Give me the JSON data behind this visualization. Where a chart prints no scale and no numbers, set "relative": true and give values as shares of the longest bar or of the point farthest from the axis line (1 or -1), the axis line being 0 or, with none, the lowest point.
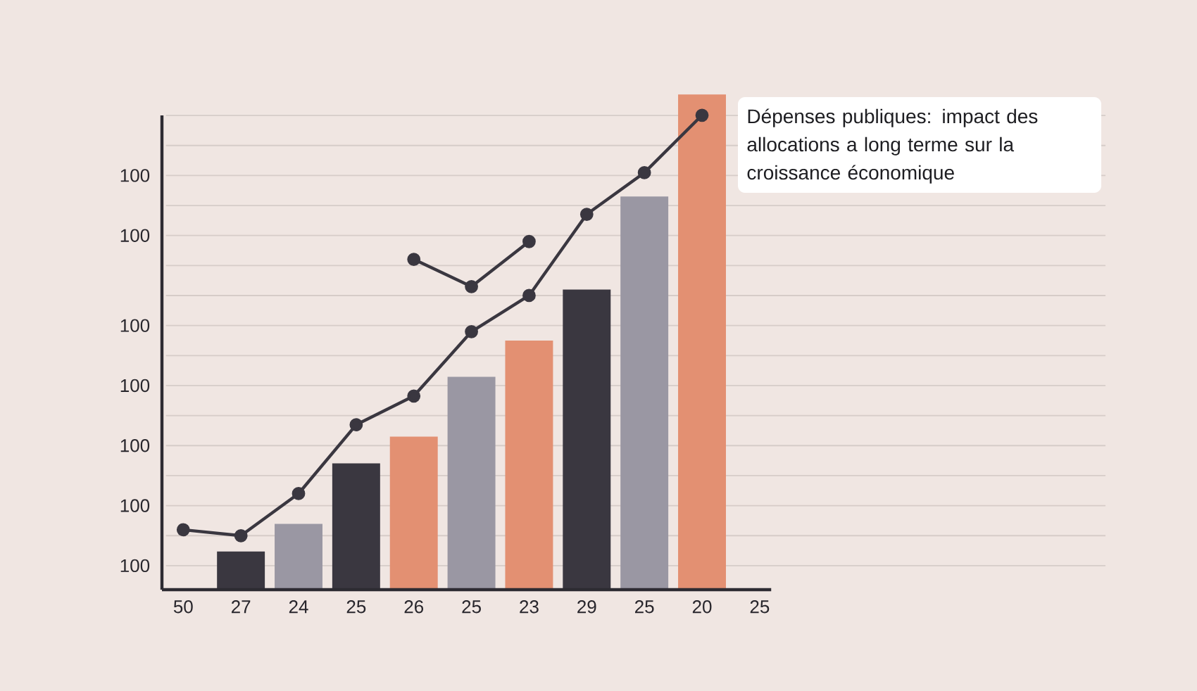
{
  "chart_data": {
    "type": "bar",
    "title": "Dépenses publiques: impact des allocations a long terme sur la croissance économique",
    "categories": [
      "50",
      "27",
      "24",
      "25",
      "26",
      "25",
      "23",
      "29",
      "25",
      "20",
      "25"
    ],
    "relative": true,
    "series": [
      {
        "type": "bar",
        "values": [
          null,
          0.077,
          0.133,
          0.255,
          0.309,
          0.43,
          0.503,
          0.606,
          0.794,
          1,
          null
        ],
        "colors": [
          "#3a3740",
          "#3a3740",
          "#9a97a3",
          "#3a3740",
          "#e39072",
          "#9a97a3",
          "#e39072",
          "#3a3740",
          "#9a97a3",
          "#e39072",
          "#3a3740"
        ]
      },
      {
        "type": "line",
        "color": "#3a3740",
        "values": [
          0.121,
          0.109,
          0.194,
          0.333,
          0.391,
          0.521,
          0.594,
          0.758,
          0.842,
          0.958,
          null
        ]
      },
      {
        "type": "line",
        "color": "#3a3740",
        "values": [
          null,
          null,
          null,
          null,
          0.667,
          0.612,
          0.703,
          null,
          null,
          null,
          null
        ]
      }
    ],
    "marker": "circle",
    "grid": "y",
    "annotations": [
      "100",
      "100",
      "100",
      "100",
      "100",
      "100",
      "100"
    ]
  }
}
